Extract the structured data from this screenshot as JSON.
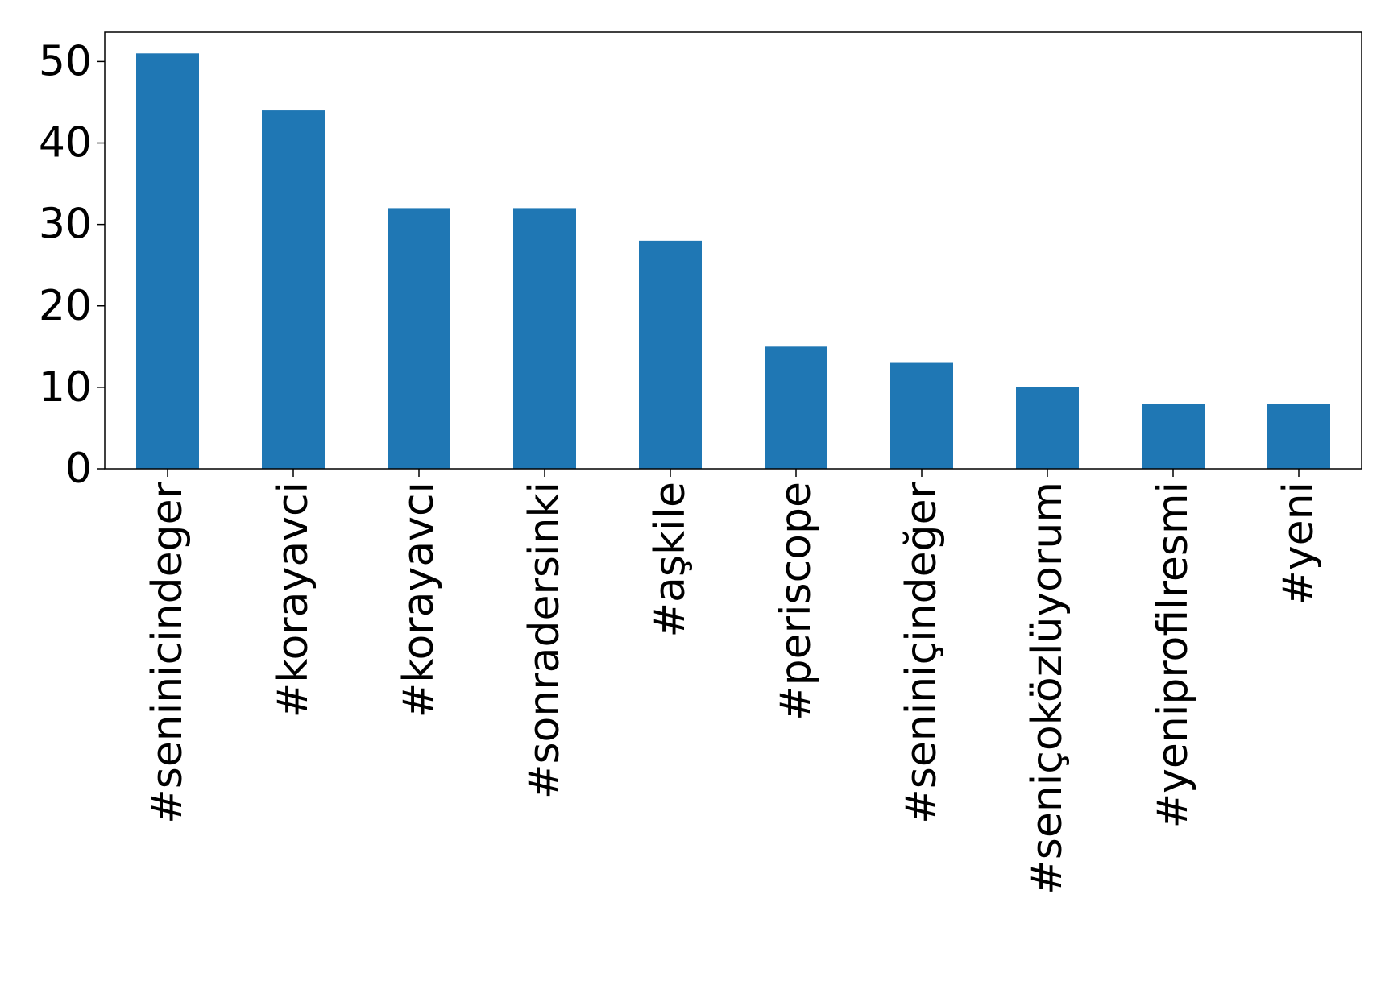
{
  "chart_data": {
    "type": "bar",
    "title": "",
    "xlabel": "",
    "ylabel": "",
    "categories": [
      "#seninicindeger",
      "#korayavci",
      "#korayavcı",
      "#sonradersinki",
      "#aşkile",
      "#periscope",
      "#seniniçindeğer",
      "#seniçoközlüyorum",
      "#yeniprofilresmi",
      "#yeni"
    ],
    "values": [
      51,
      44,
      32,
      32,
      28,
      15,
      13,
      10,
      8,
      8
    ],
    "ylim": [
      0,
      53.6
    ],
    "yticks": [
      0,
      10,
      20,
      30,
      40,
      50
    ],
    "ytick_labels": [
      "0",
      "10",
      "20",
      "30",
      "40",
      "50"
    ],
    "grid": false,
    "legend": "none",
    "colors": {
      "bar": "#1f77b4",
      "axis": "#000000",
      "background": "#ffffff"
    }
  }
}
